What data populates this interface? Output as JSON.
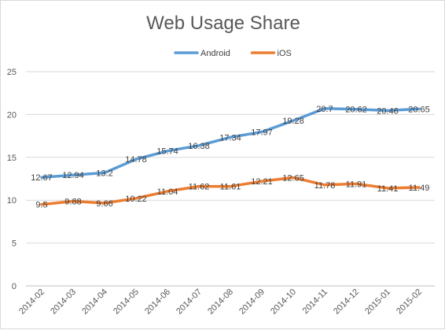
{
  "chart_data": {
    "type": "line",
    "title": "Web Usage Share",
    "categories": [
      "2014-02",
      "2014-03",
      "2014-04",
      "2014-05",
      "2014-06",
      "2014-07",
      "2014-08",
      "2014-09",
      "2014-10",
      "2014-11",
      "2014-12",
      "2015-01",
      "2015-02"
    ],
    "series": [
      {
        "name": "Android",
        "color": "#5b9bd5",
        "values": [
          12.67,
          12.94,
          13.2,
          14.78,
          15.74,
          16.38,
          17.34,
          17.97,
          19.28,
          20.7,
          20.62,
          20.46,
          20.65
        ],
        "labels": [
          "12.67",
          "12.94",
          "13.2",
          "14.78",
          "15.74",
          "16.38",
          "17.34",
          "17.97",
          "19.28",
          "20.7",
          "20.62",
          "20.46",
          "20.65"
        ]
      },
      {
        "name": "iOS",
        "color": "#ed7d31",
        "values": [
          9.5,
          9.88,
          9.66,
          10.22,
          11.04,
          11.62,
          11.61,
          12.21,
          12.65,
          11.78,
          11.91,
          11.41,
          11.49
        ],
        "labels": [
          "9.5",
          "9.88",
          "9.66",
          "10.22",
          "11.04",
          "11.62",
          "11.61",
          "12.21",
          "12.65",
          "11.78",
          "11.91",
          "11.41",
          "11.49"
        ]
      }
    ],
    "ylim": [
      0,
      25
    ],
    "yticks": [
      "0",
      "5",
      "10",
      "15",
      "20",
      "25"
    ],
    "grid": true,
    "legend": "top"
  }
}
